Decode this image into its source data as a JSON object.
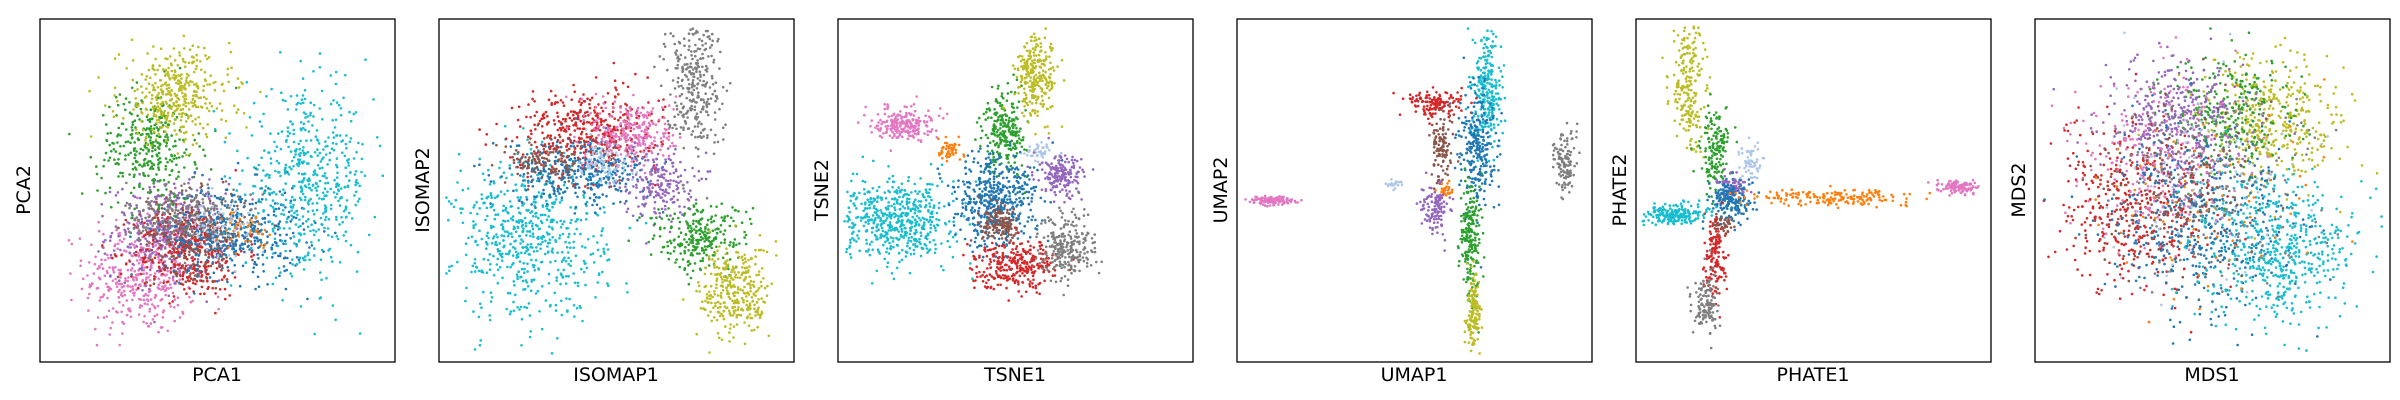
{
  "figure": {
    "description_free": true,
    "palette": {
      "blue": "#1f77b4",
      "orange": "#ff7f0e",
      "green": "#2ca02c",
      "red": "#d62728",
      "purple": "#9467bd",
      "brown": "#8c564b",
      "pink": "#e377c2",
      "gray": "#7f7f7f",
      "olive": "#bcbd22",
      "cyan": "#17becf",
      "lightblue": "#aec7e8"
    }
  },
  "chart_data": [
    {
      "type": "scatter",
      "xlabel": "PCA1",
      "ylabel": "PCA2",
      "xlim": [
        0,
        1
      ],
      "ylim": [
        0,
        1
      ],
      "ticks": "none",
      "grid": false,
      "legend": "none",
      "clusters": [
        {
          "color": "pink",
          "x": 0.28,
          "y": 0.25,
          "sx": 0.08,
          "sy": 0.09,
          "n": 420
        },
        {
          "color": "purple",
          "x": 0.36,
          "y": 0.38,
          "sx": 0.08,
          "sy": 0.07,
          "n": 380
        },
        {
          "color": "red",
          "x": 0.42,
          "y": 0.32,
          "sx": 0.08,
          "sy": 0.07,
          "n": 360
        },
        {
          "color": "brown",
          "x": 0.44,
          "y": 0.37,
          "sx": 0.07,
          "sy": 0.06,
          "n": 260
        },
        {
          "color": "blue",
          "x": 0.55,
          "y": 0.38,
          "sx": 0.1,
          "sy": 0.07,
          "n": 420
        },
        {
          "color": "gray",
          "x": 0.4,
          "y": 0.43,
          "sx": 0.08,
          "sy": 0.05,
          "n": 200
        },
        {
          "color": "green",
          "x": 0.3,
          "y": 0.63,
          "sx": 0.07,
          "sy": 0.08,
          "n": 320
        },
        {
          "color": "olive",
          "x": 0.38,
          "y": 0.78,
          "sx": 0.08,
          "sy": 0.07,
          "n": 380
        },
        {
          "color": "cyan",
          "x": 0.76,
          "y": 0.52,
          "sx": 0.09,
          "sy": 0.13,
          "n": 520
        },
        {
          "color": "orange",
          "x": 0.58,
          "y": 0.38,
          "sx": 0.03,
          "sy": 0.03,
          "n": 40
        },
        {
          "color": "lightblue",
          "x": 0.5,
          "y": 0.4,
          "sx": 0.05,
          "sy": 0.04,
          "n": 60
        }
      ]
    },
    {
      "type": "scatter",
      "xlabel": "ISOMAP1",
      "ylabel": "ISOMAP2",
      "xlim": [
        0,
        1
      ],
      "ylim": [
        0,
        1
      ],
      "ticks": "none",
      "grid": false,
      "legend": "none",
      "clusters": [
        {
          "color": "cyan",
          "x": 0.25,
          "y": 0.36,
          "sx": 0.11,
          "sy": 0.12,
          "n": 620
        },
        {
          "color": "blue",
          "x": 0.4,
          "y": 0.56,
          "sx": 0.1,
          "sy": 0.05,
          "n": 380
        },
        {
          "color": "red",
          "x": 0.42,
          "y": 0.68,
          "sx": 0.1,
          "sy": 0.06,
          "n": 420
        },
        {
          "color": "pink",
          "x": 0.55,
          "y": 0.67,
          "sx": 0.06,
          "sy": 0.05,
          "n": 260
        },
        {
          "color": "purple",
          "x": 0.62,
          "y": 0.52,
          "sx": 0.05,
          "sy": 0.05,
          "n": 200
        },
        {
          "color": "gray",
          "x": 0.72,
          "y": 0.82,
          "sx": 0.04,
          "sy": 0.1,
          "n": 300
        },
        {
          "color": "green",
          "x": 0.74,
          "y": 0.36,
          "sx": 0.07,
          "sy": 0.05,
          "n": 260
        },
        {
          "color": "olive",
          "x": 0.84,
          "y": 0.2,
          "sx": 0.05,
          "sy": 0.07,
          "n": 320
        },
        {
          "color": "brown",
          "x": 0.3,
          "y": 0.58,
          "sx": 0.06,
          "sy": 0.03,
          "n": 120
        },
        {
          "color": "lightblue",
          "x": 0.46,
          "y": 0.58,
          "sx": 0.04,
          "sy": 0.03,
          "n": 80
        }
      ]
    },
    {
      "type": "scatter",
      "xlabel": "TSNE1",
      "ylabel": "TSNE2",
      "xlim": [
        0,
        1
      ],
      "ylim": [
        0,
        1
      ],
      "ticks": "none",
      "grid": false,
      "legend": "none",
      "clusters": [
        {
          "color": "cyan",
          "x": 0.16,
          "y": 0.41,
          "sx": 0.08,
          "sy": 0.06,
          "n": 560
        },
        {
          "color": "pink",
          "x": 0.18,
          "y": 0.7,
          "sx": 0.04,
          "sy": 0.025,
          "n": 220
        },
        {
          "color": "orange",
          "x": 0.31,
          "y": 0.62,
          "sx": 0.02,
          "sy": 0.015,
          "n": 50
        },
        {
          "color": "green",
          "x": 0.47,
          "y": 0.68,
          "sx": 0.03,
          "sy": 0.06,
          "n": 240
        },
        {
          "color": "olive",
          "x": 0.56,
          "y": 0.84,
          "sx": 0.03,
          "sy": 0.06,
          "n": 260
        },
        {
          "color": "lightblue",
          "x": 0.57,
          "y": 0.61,
          "sx": 0.02,
          "sy": 0.015,
          "n": 40
        },
        {
          "color": "blue",
          "x": 0.44,
          "y": 0.47,
          "sx": 0.06,
          "sy": 0.07,
          "n": 480
        },
        {
          "color": "purple",
          "x": 0.63,
          "y": 0.54,
          "sx": 0.03,
          "sy": 0.03,
          "n": 180
        },
        {
          "color": "brown",
          "x": 0.46,
          "y": 0.4,
          "sx": 0.03,
          "sy": 0.025,
          "n": 140
        },
        {
          "color": "red",
          "x": 0.5,
          "y": 0.28,
          "sx": 0.06,
          "sy": 0.035,
          "n": 300
        },
        {
          "color": "gray",
          "x": 0.65,
          "y": 0.33,
          "sx": 0.04,
          "sy": 0.05,
          "n": 240
        }
      ]
    },
    {
      "type": "scatter",
      "xlabel": "UMAP1",
      "ylabel": "UMAP2",
      "xlim": [
        0,
        1
      ],
      "ylim": [
        0,
        1
      ],
      "ticks": "none",
      "grid": false,
      "legend": "none",
      "clusters": [
        {
          "color": "pink",
          "x": 0.09,
          "y": 0.47,
          "sx": 0.03,
          "sy": 0.006,
          "n": 120
        },
        {
          "color": "lightblue",
          "x": 0.44,
          "y": 0.52,
          "sx": 0.015,
          "sy": 0.006,
          "n": 25
        },
        {
          "color": "cyan",
          "x": 0.71,
          "y": 0.8,
          "sx": 0.02,
          "sy": 0.09,
          "n": 260
        },
        {
          "color": "red",
          "x": 0.56,
          "y": 0.76,
          "sx": 0.04,
          "sy": 0.02,
          "n": 140
        },
        {
          "color": "brown",
          "x": 0.58,
          "y": 0.62,
          "sx": 0.015,
          "sy": 0.05,
          "n": 110
        },
        {
          "color": "blue",
          "x": 0.68,
          "y": 0.63,
          "sx": 0.025,
          "sy": 0.09,
          "n": 260
        },
        {
          "color": "orange",
          "x": 0.59,
          "y": 0.5,
          "sx": 0.01,
          "sy": 0.01,
          "n": 30
        },
        {
          "color": "purple",
          "x": 0.56,
          "y": 0.45,
          "sx": 0.02,
          "sy": 0.035,
          "n": 120
        },
        {
          "color": "green",
          "x": 0.66,
          "y": 0.35,
          "sx": 0.015,
          "sy": 0.09,
          "n": 200
        },
        {
          "color": "olive",
          "x": 0.67,
          "y": 0.14,
          "sx": 0.01,
          "sy": 0.05,
          "n": 140
        },
        {
          "color": "gray",
          "x": 0.93,
          "y": 0.58,
          "sx": 0.015,
          "sy": 0.05,
          "n": 120
        }
      ]
    },
    {
      "type": "scatter",
      "xlabel": "PHATE1",
      "ylabel": "PHATE2",
      "xlim": [
        0,
        1
      ],
      "ylim": [
        0,
        1
      ],
      "ticks": "none",
      "grid": false,
      "legend": "none",
      "clusters": [
        {
          "color": "olive",
          "x": 0.14,
          "y": 0.82,
          "sx": 0.025,
          "sy": 0.1,
          "n": 220
        },
        {
          "color": "green",
          "x": 0.22,
          "y": 0.62,
          "sx": 0.02,
          "sy": 0.06,
          "n": 160
        },
        {
          "color": "lightblue",
          "x": 0.32,
          "y": 0.58,
          "sx": 0.015,
          "sy": 0.03,
          "n": 60
        },
        {
          "color": "purple",
          "x": 0.27,
          "y": 0.51,
          "sx": 0.02,
          "sy": 0.02,
          "n": 80
        },
        {
          "color": "blue",
          "x": 0.26,
          "y": 0.47,
          "sx": 0.03,
          "sy": 0.03,
          "n": 180
        },
        {
          "color": "cyan",
          "x": 0.1,
          "y": 0.43,
          "sx": 0.045,
          "sy": 0.015,
          "n": 200
        },
        {
          "color": "orange",
          "x": 0.56,
          "y": 0.48,
          "sx": 0.12,
          "sy": 0.012,
          "n": 180
        },
        {
          "color": "pink",
          "x": 0.92,
          "y": 0.51,
          "sx": 0.025,
          "sy": 0.01,
          "n": 120
        },
        {
          "color": "red",
          "x": 0.22,
          "y": 0.31,
          "sx": 0.015,
          "sy": 0.06,
          "n": 140
        },
        {
          "color": "gray",
          "x": 0.19,
          "y": 0.16,
          "sx": 0.02,
          "sy": 0.05,
          "n": 120
        },
        {
          "color": "brown",
          "x": 0.24,
          "y": 0.4,
          "sx": 0.015,
          "sy": 0.015,
          "n": 40
        }
      ]
    },
    {
      "type": "scatter",
      "xlabel": "MDS1",
      "ylabel": "MDS2",
      "xlim": [
        0,
        1
      ],
      "ylim": [
        0,
        1
      ],
      "ticks": "none",
      "grid": false,
      "legend": "none",
      "clusters": [
        {
          "color": "olive",
          "x": 0.66,
          "y": 0.7,
          "sx": 0.1,
          "sy": 0.1,
          "n": 420
        },
        {
          "color": "green",
          "x": 0.56,
          "y": 0.72,
          "sx": 0.09,
          "sy": 0.09,
          "n": 260
        },
        {
          "color": "purple",
          "x": 0.4,
          "y": 0.7,
          "sx": 0.1,
          "sy": 0.1,
          "n": 380
        },
        {
          "color": "red",
          "x": 0.28,
          "y": 0.44,
          "sx": 0.12,
          "sy": 0.12,
          "n": 420
        },
        {
          "color": "blue",
          "x": 0.48,
          "y": 0.42,
          "sx": 0.13,
          "sy": 0.13,
          "n": 500
        },
        {
          "color": "cyan",
          "x": 0.68,
          "y": 0.32,
          "sx": 0.11,
          "sy": 0.11,
          "n": 560
        },
        {
          "color": "pink",
          "x": 0.34,
          "y": 0.62,
          "sx": 0.12,
          "sy": 0.12,
          "n": 220
        },
        {
          "color": "gray",
          "x": 0.5,
          "y": 0.52,
          "sx": 0.15,
          "sy": 0.15,
          "n": 180
        },
        {
          "color": "brown",
          "x": 0.4,
          "y": 0.5,
          "sx": 0.13,
          "sy": 0.13,
          "n": 160
        },
        {
          "color": "orange",
          "x": 0.5,
          "y": 0.5,
          "sx": 0.16,
          "sy": 0.16,
          "n": 80
        },
        {
          "color": "lightblue",
          "x": 0.5,
          "y": 0.55,
          "sx": 0.15,
          "sy": 0.15,
          "n": 80
        }
      ]
    }
  ]
}
